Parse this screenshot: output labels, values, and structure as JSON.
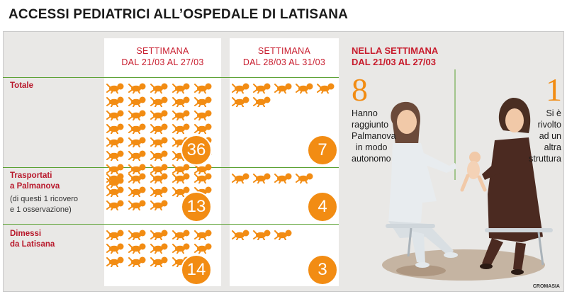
{
  "title": "ACCESSI PEDIATRICI ALL’OSPEDALE DI LATISANA",
  "columns": [
    {
      "line1": "SETTIMANA",
      "line2": "DAL 21/03 AL 27/03"
    },
    {
      "line1": "SETTIMANA",
      "line2": "DAL 28/03 AL 31/03"
    }
  ],
  "rows": [
    {
      "label1": "Totale",
      "label2": "",
      "note1": "",
      "note2": ""
    },
    {
      "label1": "Trasportati",
      "label2": "a Palmanova",
      "note1": "(di questi 1 ricovero",
      "note2": "e 1 osservazione)"
    },
    {
      "label1": "Dimessi",
      "label2": "da Latisana",
      "note1": "",
      "note2": ""
    }
  ],
  "chart_data": {
    "type": "table",
    "categories": [
      "Totale",
      "Trasportati a Palmanova",
      "Dimessi da Latisana"
    ],
    "series": [
      {
        "name": "SETTIMANA DAL 21/03 AL 27/03",
        "values": [
          36,
          13,
          14
        ]
      },
      {
        "name": "SETTIMANA DAL 28/03 AL 31/03",
        "values": [
          7,
          4,
          3
        ]
      }
    ],
    "labels": [
      [
        "36",
        "7"
      ],
      [
        "13",
        "4"
      ],
      [
        "14",
        "3"
      ]
    ]
  },
  "side": {
    "title1": "NELLA SETTIMANA",
    "title2": "DAL 21/03 AL 27/03",
    "left": {
      "number": "8",
      "lines": [
        "Hanno",
        "raggiunto",
        "Palmanova",
        "in modo",
        "autonomo"
      ]
    },
    "right": {
      "number": "1",
      "lines": [
        "Si è",
        "rivolto",
        "ad un",
        "altra",
        "struttura"
      ]
    }
  },
  "credit": "CROMASIA",
  "colors": {
    "accent": "#f28c13",
    "heading_red": "#c81d2e",
    "row_line": "#5aa132",
    "panel": "#e9e8e6"
  },
  "icon_name": "baby-icon"
}
